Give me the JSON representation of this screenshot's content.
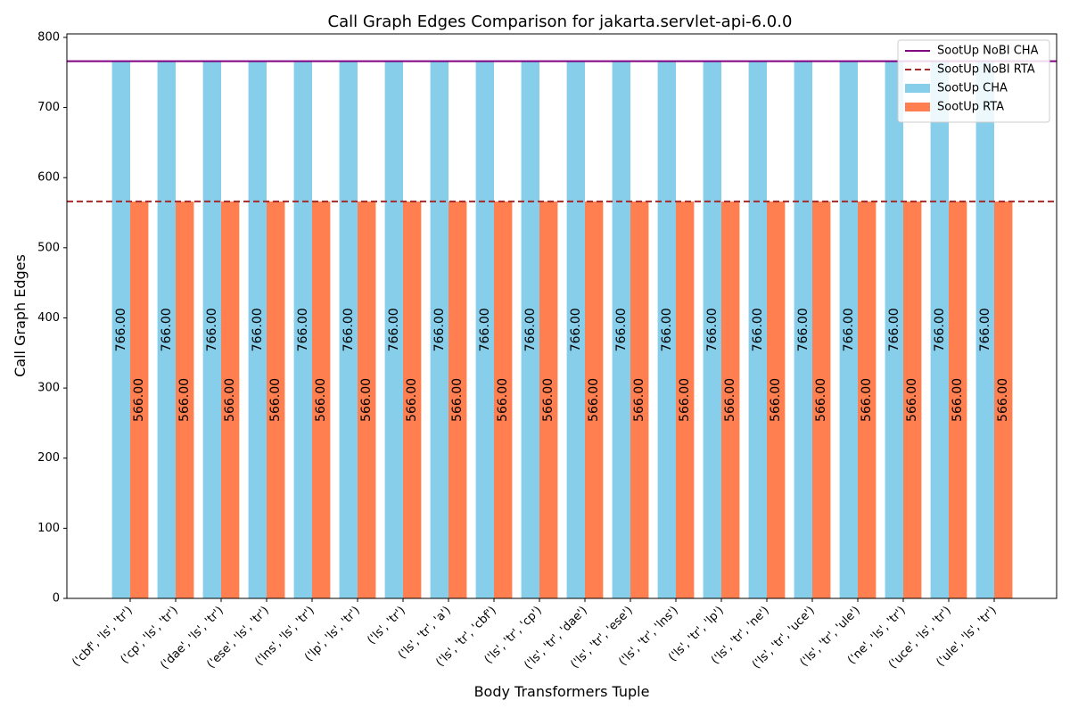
{
  "chart_data": {
    "type": "bar",
    "title": "Call Graph Edges Comparison for jakarta.servlet-api-6.0.0",
    "xlabel": "Body Transformers Tuple",
    "ylabel": "Call Graph Edges",
    "ylim": [
      0,
      805
    ],
    "yticks": [
      0,
      100,
      200,
      300,
      400,
      500,
      600,
      700,
      800
    ],
    "grid": false,
    "legend_position": "top-right",
    "categories": [
      "('cbf', 'ls', 'tr')",
      "('cp', 'ls', 'tr')",
      "('dae', 'ls', 'tr')",
      "('ese', 'ls', 'tr')",
      "('lns', 'ls', 'tr')",
      "('lp', 'ls', 'tr')",
      "('ls', 'tr')",
      "('ls', 'tr', 'a')",
      "('ls', 'tr', 'cbf')",
      "('ls', 'tr', 'cp')",
      "('ls', 'tr', 'dae')",
      "('ls', 'tr', 'ese')",
      "('ls', 'tr', 'lns')",
      "('ls', 'tr', 'lp')",
      "('ls', 'tr', 'ne')",
      "('ls', 'tr', 'uce')",
      "('ls', 'tr', 'ule')",
      "('ne', 'ls', 'tr')",
      "('uce', 'ls', 'tr')",
      "('ule', 'ls', 'tr')"
    ],
    "series": [
      {
        "name": "SootUp CHA",
        "color": "#87CEEB",
        "values": [
          766,
          766,
          766,
          766,
          766,
          766,
          766,
          766,
          766,
          766,
          766,
          766,
          766,
          766,
          766,
          766,
          766,
          766,
          766,
          766
        ]
      },
      {
        "name": "SootUp RTA",
        "color": "#FF7F50",
        "values": [
          566,
          566,
          566,
          566,
          566,
          566,
          566,
          566,
          566,
          566,
          566,
          566,
          566,
          566,
          566,
          566,
          566,
          566,
          566,
          566
        ]
      }
    ],
    "reference_lines": [
      {
        "name": "SootUp NoBI CHA",
        "value": 766,
        "color": "#800080",
        "style": "solid"
      },
      {
        "name": "SootUp NoBI RTA",
        "value": 566,
        "color": "#A52A2A",
        "style": "dashed"
      }
    ]
  }
}
